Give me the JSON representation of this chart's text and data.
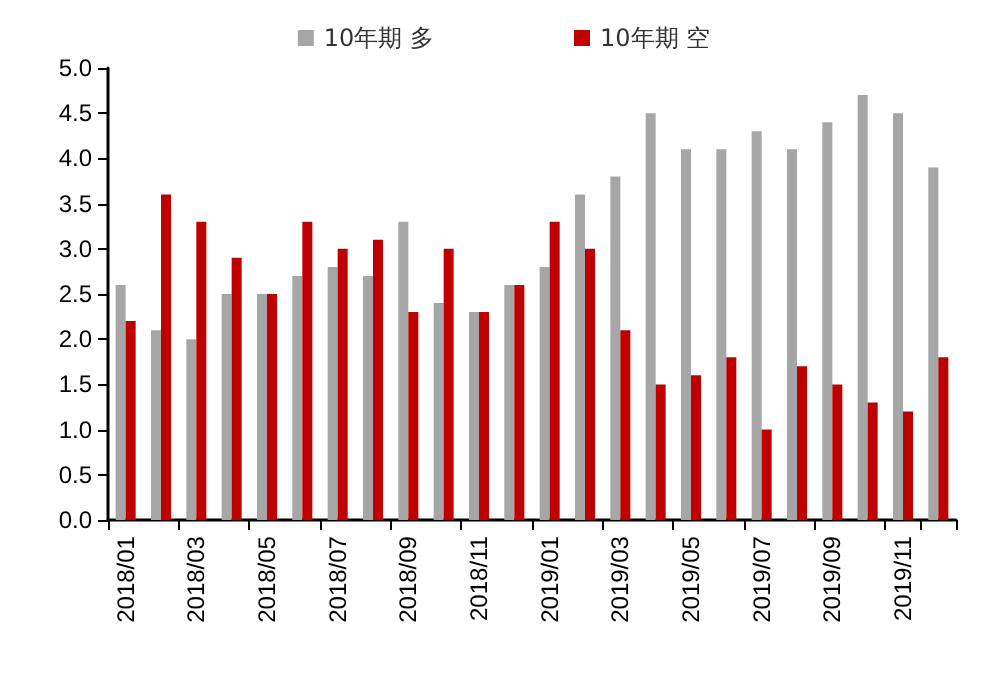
{
  "chart_data": {
    "type": "bar",
    "categories": [
      "2018/01",
      null,
      "2018/03",
      null,
      "2018/05",
      null,
      "2018/07",
      null,
      "2018/09",
      null,
      "2018/11",
      null,
      "2019/01",
      null,
      "2019/03",
      null,
      "2019/05",
      null,
      "2019/07",
      null,
      "2019/09",
      null,
      "2019/11",
      null
    ],
    "series": [
      {
        "name": "10年期 多",
        "color": "#a6a6a6",
        "values": [
          2.6,
          2.1,
          2.0,
          2.5,
          2.5,
          2.7,
          2.8,
          2.7,
          3.3,
          2.4,
          2.3,
          2.6,
          2.8,
          3.6,
          3.8,
          4.5,
          4.1,
          4.1,
          4.3,
          4.1,
          4.4,
          4.7,
          4.5,
          3.9
        ]
      },
      {
        "name": "10年期 空",
        "color": "#c00000",
        "values": [
          2.2,
          3.6,
          3.3,
          2.9,
          2.5,
          3.3,
          3.0,
          3.1,
          2.3,
          3.0,
          2.3,
          2.6,
          3.3,
          3.0,
          2.1,
          1.5,
          1.6,
          1.8,
          1.0,
          1.7,
          1.5,
          1.3,
          1.2,
          1.8
        ]
      }
    ],
    "ylim": [
      0,
      5
    ],
    "yticks": [
      {
        "value": 0,
        "label": "0.0"
      },
      {
        "value": 0.5,
        "label": "0.5"
      },
      {
        "value": 1,
        "label": "1.0"
      },
      {
        "value": 1.5,
        "label": "1.5"
      },
      {
        "value": 2,
        "label": "2.0"
      },
      {
        "value": 2.5,
        "label": "2.5"
      },
      {
        "value": 3,
        "label": "3.0"
      },
      {
        "value": 3.5,
        "label": "3.5"
      },
      {
        "value": 4,
        "label": "4.0"
      },
      {
        "value": 4.5,
        "label": "4.5"
      },
      {
        "value": 5,
        "label": "5.0"
      }
    ],
    "grid": false,
    "legend": "top"
  }
}
